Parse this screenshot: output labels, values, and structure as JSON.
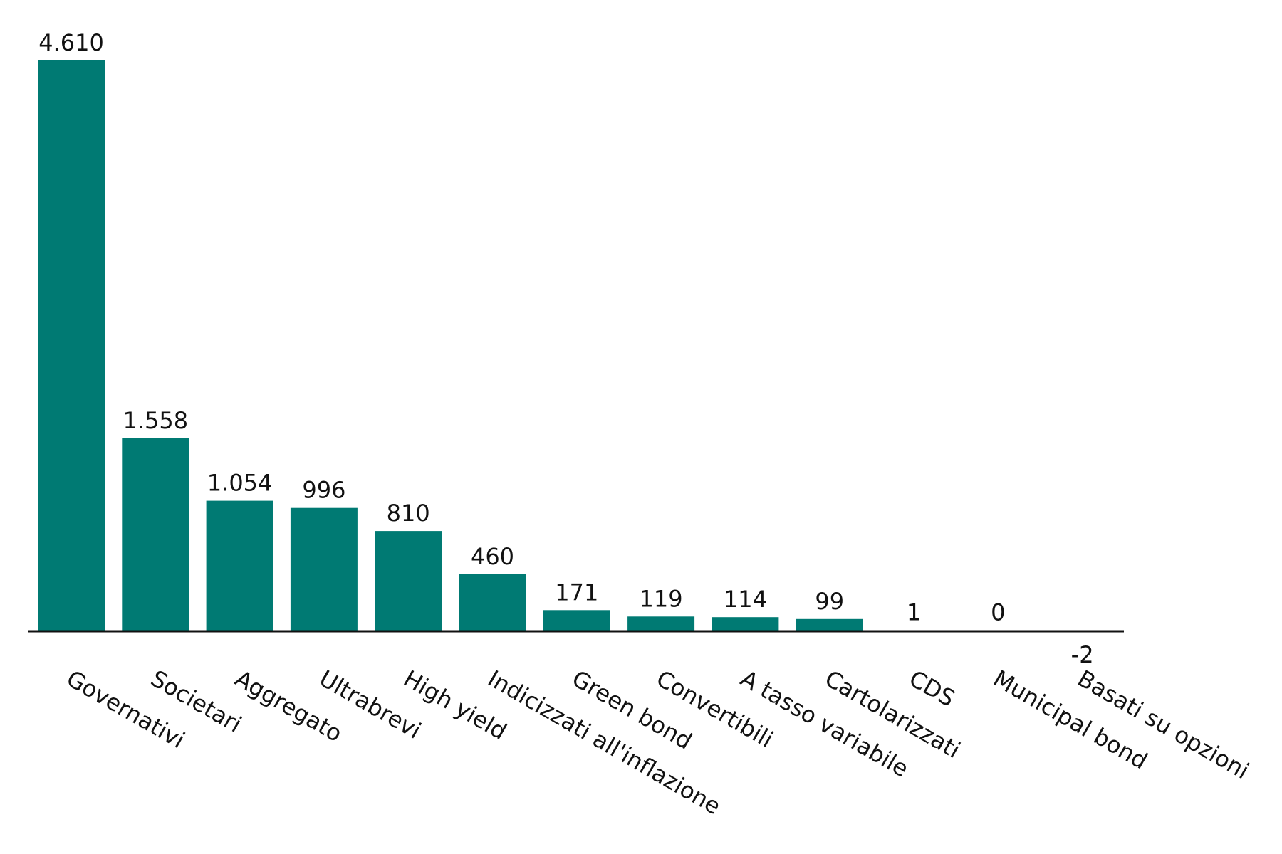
{
  "colors": {
    "bar": "#007a73",
    "axis": "#111111",
    "text": "#111111",
    "background": "#ffffff"
  },
  "chart_data": {
    "type": "bar",
    "title": "",
    "xlabel": "",
    "ylabel": "",
    "grid": false,
    "legend": "none",
    "ylim": [
      -2,
      4610
    ],
    "categories": [
      "Governativi",
      "Societari",
      "Aggregato",
      "Ultrabrevi",
      "High yield",
      "Indicizzati all'inflazione",
      "Green bond",
      "Convertibili",
      "A tasso variabile",
      "Cartolarizzati",
      "CDS",
      "Municipal bond",
      "Basati su opzioni"
    ],
    "values": [
      4610,
      1558,
      1054,
      996,
      810,
      460,
      171,
      119,
      114,
      99,
      1,
      0,
      -2
    ],
    "value_labels": [
      "4.610",
      "1.558",
      "1.054",
      "996",
      "810",
      "460",
      "171",
      "119",
      "114",
      "99",
      "1",
      "0",
      "-2"
    ]
  }
}
